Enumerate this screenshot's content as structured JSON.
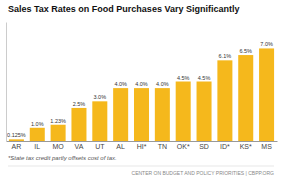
{
  "chart_data": {
    "type": "bar",
    "title": "Sales Tax Rates on Food Purchases Vary Significantly",
    "categories": [
      "AR",
      "IL",
      "MO",
      "VA",
      "UT",
      "AL",
      "HI*",
      "TN",
      "OK*",
      "SD",
      "ID*",
      "KS*",
      "MS"
    ],
    "values": [
      0.125,
      1.0,
      1.23,
      2.5,
      3.0,
      4.0,
      4.0,
      4.0,
      4.5,
      4.5,
      6.1,
      6.5,
      7.0
    ],
    "value_labels": [
      "0.125%",
      "1.0%",
      "1.23%",
      "2.5%",
      "3.0%",
      "4.0%",
      "4.0%",
      "4.0%",
      "4.5%",
      "4.5%",
      "6.1%",
      "6.5%",
      "7.0%"
    ],
    "data_labels": true,
    "color": "#F5B81C",
    "ylim": [
      0,
      9.0
    ],
    "grid": false,
    "tick_labels": "x",
    "annotations": [
      "*State tax credit partly offsets cost of tax.",
      "CENTER ON BUDGET AND POLICY PRIORITIES | CBPP.ORG"
    ]
  }
}
